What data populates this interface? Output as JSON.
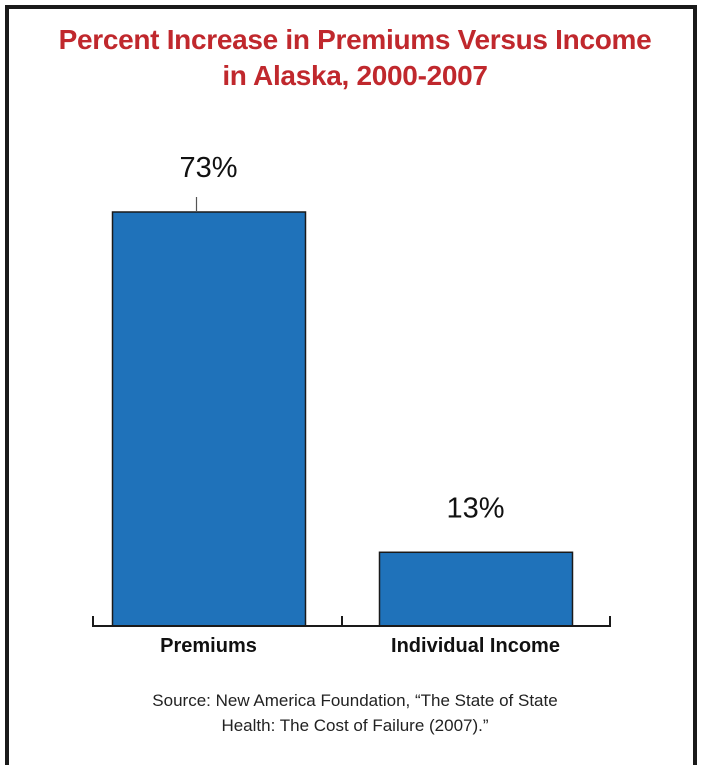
{
  "chart_data": {
    "type": "bar",
    "title_lines": [
      "Percent Increase in Premiums Versus Income",
      "in Alaska, 2000-2007"
    ],
    "categories": [
      "Premiums",
      "Individual Income"
    ],
    "values": [
      73,
      13
    ],
    "value_labels": [
      "73%",
      "13%"
    ],
    "bar_color": "#1f72ba",
    "ylim": [
      0,
      73
    ]
  },
  "source_lines": [
    "Source: New America Foundation, “The State of State",
    "Health: The Cost of Failure (2007).”"
  ],
  "colors": {
    "title": "#c0282d",
    "bar": "#1f72ba",
    "bar_border": "#1a1a1a",
    "axis": "#1a1a1a"
  }
}
